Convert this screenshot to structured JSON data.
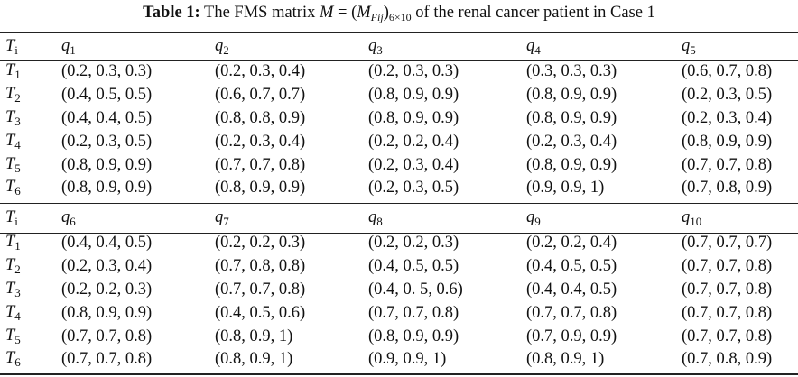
{
  "caption": {
    "label": "Table 1:",
    "text_before": "The FMS matrix",
    "M": "M",
    "equals": " = (",
    "inner": "M",
    "inner_sub": "Fij",
    "close_sub": "6×10",
    "text_after": "of the renal cancer patient in Case 1"
  },
  "row_header": {
    "symbol": "T",
    "sub": "i"
  },
  "row_labels": [
    "1",
    "2",
    "3",
    "4",
    "5",
    "6"
  ],
  "blocks": [
    {
      "columns": [
        "1",
        "2",
        "3",
        "4",
        "5"
      ],
      "rows": [
        [
          "(0.2, 0.3, 0.3)",
          "(0.2, 0.3, 0.4)",
          "(0.2, 0.3, 0.3)",
          "(0.3, 0.3, 0.3)",
          "(0.6, 0.7, 0.8)"
        ],
        [
          "(0.4, 0.5, 0.5)",
          "(0.6, 0.7, 0.7)",
          "(0.8, 0.9, 0.9)",
          "(0.8, 0.9, 0.9)",
          "(0.2, 0.3, 0.5)"
        ],
        [
          "(0.4, 0.4, 0.5)",
          "(0.8, 0.8, 0.9)",
          "(0.8, 0.9, 0.9)",
          "(0.8, 0.9, 0.9)",
          "(0.2, 0.3, 0.4)"
        ],
        [
          "(0.2, 0.3, 0.5)",
          "(0.2, 0.3, 0.4)",
          "(0.2, 0.2, 0.4)",
          "(0.2, 0.3, 0.4)",
          "(0.8, 0.9, 0.9)"
        ],
        [
          "(0.8, 0.9, 0.9)",
          "(0.7, 0.7, 0.8)",
          "(0.2, 0.3, 0.4)",
          "(0.8, 0.9, 0.9)",
          "(0.7, 0.7, 0.8)"
        ],
        [
          "(0.8, 0.9, 0.9)",
          "(0.8, 0.9, 0.9)",
          "(0.2, 0.3, 0.5)",
          "(0.9, 0.9, 1)",
          "(0.7, 0.8, 0.9)"
        ]
      ]
    },
    {
      "columns": [
        "6",
        "7",
        "8",
        "9",
        "10"
      ],
      "rows": [
        [
          "(0.4, 0.4, 0.5)",
          "(0.2, 0.2, 0.3)",
          "(0.2, 0.2, 0.3)",
          "(0.2, 0.2, 0.4)",
          "(0.7, 0.7, 0.7)"
        ],
        [
          "(0.2, 0.3, 0.4)",
          "(0.7, 0.8, 0.8)",
          "(0.4, 0.5, 0.5)",
          "(0.4, 0.5, 0.5)",
          "(0.7, 0.7, 0.8)"
        ],
        [
          "(0.2, 0.2, 0.3)",
          "(0.7, 0.7, 0.8)",
          "(0.4, 0. 5, 0.6)",
          "(0.4, 0.4, 0.5)",
          "(0.7, 0.7, 0.8)"
        ],
        [
          "(0.8, 0.9, 0.9)",
          "(0.4, 0.5, 0.6)",
          "(0.7, 0.7, 0.8)",
          "(0.7, 0.7, 0.8)",
          "(0.7, 0.7, 0.8)"
        ],
        [
          "(0.7, 0.7, 0.8)",
          "(0.8, 0.9, 1)",
          "(0.8, 0.9, 0.9)",
          "(0.7, 0.9, 0.9)",
          "(0.7, 0.7, 0.8)"
        ],
        [
          "(0.7, 0.7, 0.8)",
          "(0.8, 0.9, 1)",
          "(0.9, 0.9, 1)",
          "(0.8, 0.9, 1)",
          "(0.7, 0.8, 0.9)"
        ]
      ]
    }
  ]
}
